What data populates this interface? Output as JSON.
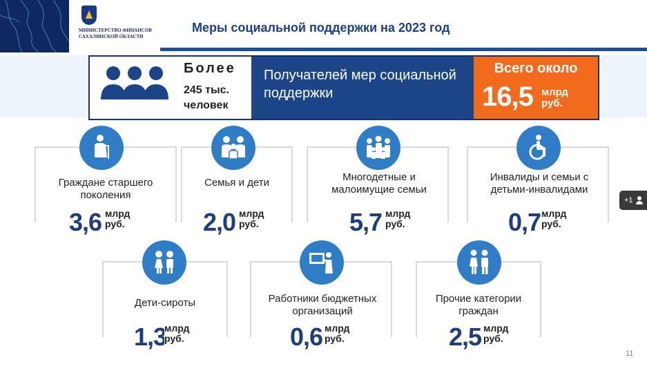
{
  "header": {
    "logo_text": "МИНИСТЕРСТВО ФИНАНСОВ САХАЛИНСКОЙ ОБЛАСТИ",
    "title": "Меры социальной поддержки на 2023 год"
  },
  "banner": {
    "more": "Более",
    "count": "245 тыс.",
    "people": "человек",
    "description": "Получателей мер социальной поддержки",
    "total_label": "Всего около",
    "total_value": "16,5",
    "total_unit": "млрд руб."
  },
  "categories": [
    {
      "label": "Граждане старшего поколения",
      "value": "3,6",
      "unit": "млрд руб."
    },
    {
      "label": "Семья и дети",
      "value": "2,0",
      "unit": "млрд руб."
    },
    {
      "label": "Многодетные и малоимущие семьи",
      "value": "5,7",
      "unit": "млрд руб."
    },
    {
      "label": "Инвалиды и семьи с детьми-инвалидами",
      "value": "0,7",
      "unit": "млрд руб."
    },
    {
      "label": "Дети-сироты",
      "value": "1,3",
      "unit": "млрд руб."
    },
    {
      "label": "Работники бюджетных организаций",
      "value": "0,6",
      "unit": "млрд руб."
    },
    {
      "label": "Прочие категории граждан",
      "value": "2,5",
      "unit": "млрд руб."
    }
  ],
  "icons": [
    "elderly-icon",
    "family-icon",
    "large-family-icon",
    "wheelchair-icon",
    "children-icon",
    "teacher-icon",
    "couple-icon"
  ],
  "colors": {
    "primary": "#1c4587",
    "accent": "#f26b1d",
    "icon": "#2f7dc6",
    "value": "#1c3d80"
  },
  "page_number": "11",
  "participants_badge": "+1"
}
